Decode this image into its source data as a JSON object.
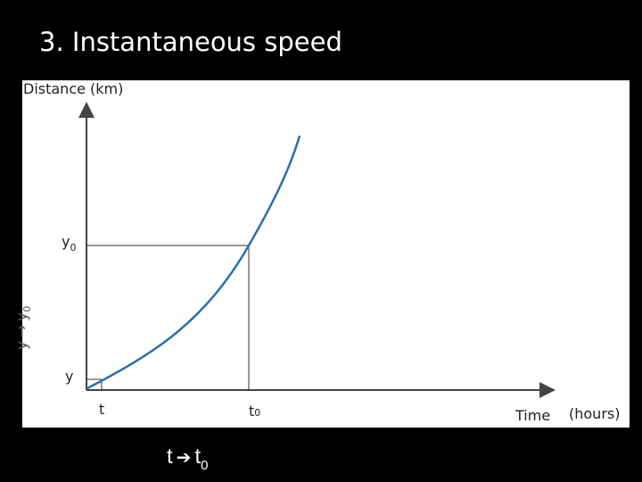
{
  "slide": {
    "title": "3. Instantaneous speed"
  },
  "diagram": {
    "y_axis_label": "Distance (km)",
    "x_axis_label_time": "Time",
    "x_axis_label_unit": "(hours)",
    "point_y0_label": "y",
    "point_y0_sub": "0",
    "point_y_label": "y",
    "point_t_label": "t",
    "point_t0_label": "t",
    "point_t0_sub": "0",
    "curve_color": "#2a6fb0",
    "axis_color": "#444444"
  },
  "side_label": {
    "text_y": "y",
    "arrow": "→",
    "text_y0": "y",
    "text_y0_sub": "0",
    "color": "#555555"
  },
  "bottom_label": {
    "t": "t",
    "arrow": "➔",
    "t0": "t",
    "t0_sub": "0",
    "color": "#ffffff"
  }
}
